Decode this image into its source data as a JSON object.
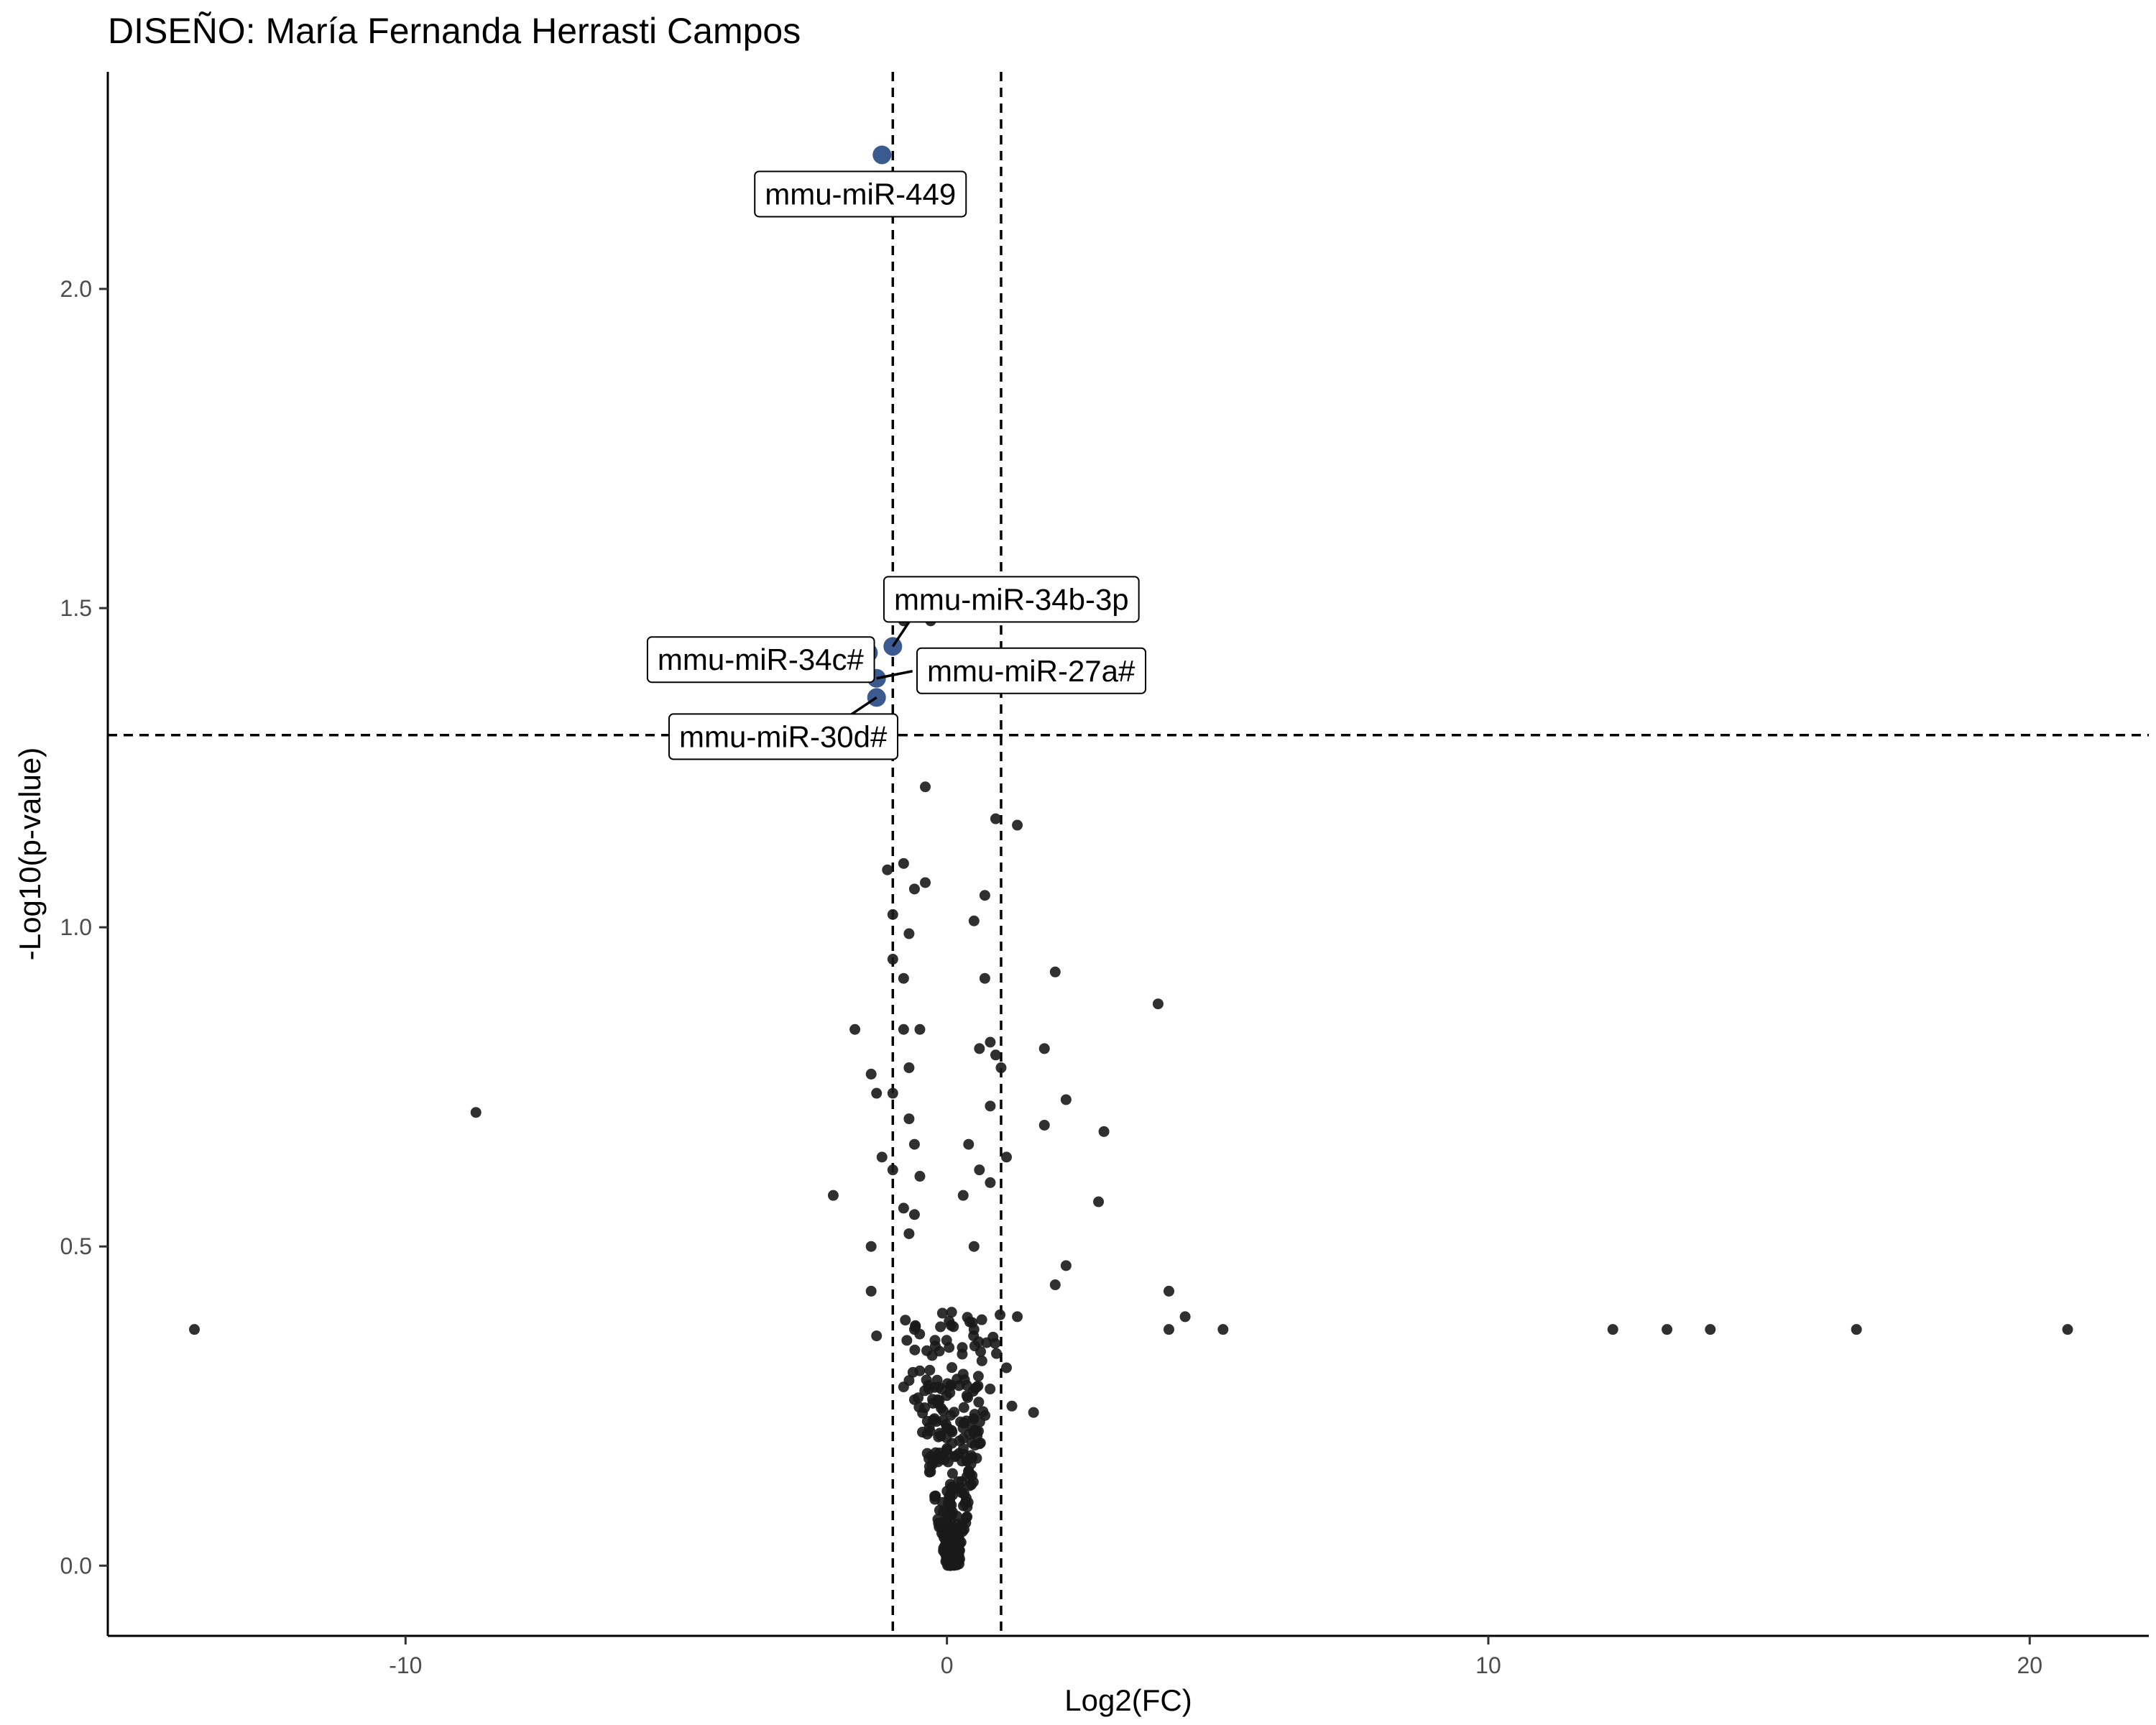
{
  "chart_data": {
    "type": "scatter",
    "title": "DISEÑO: María Fernanda Herrasti Campos",
    "xlabel": "Log2(FC)",
    "ylabel": "-Log10(p-value)",
    "xlim": [
      -15.5,
      22.2
    ],
    "ylim": [
      -0.11,
      2.34
    ],
    "x_ticks": [
      -10,
      0,
      10,
      20
    ],
    "y_ticks": [
      0.0,
      0.5,
      1.0,
      1.5,
      2.0
    ],
    "y_tick_labels": [
      "0.0",
      "0.5",
      "1.0",
      "1.5",
      "2.0"
    ],
    "grid": false,
    "thresholds": {
      "log2fc": [
        -1,
        1
      ],
      "neg_log10_p": 1.301
    },
    "colors": {
      "point": "#1a1a1a",
      "highlight": "#3b5a8f",
      "line": "#000000"
    },
    "significant_points": [
      {
        "x": -1.2,
        "y": 2.21,
        "label": "mmu-miR-449"
      },
      {
        "x": -1.0,
        "y": 1.44,
        "label": "mmu-miR-34b-3p"
      },
      {
        "x": -1.45,
        "y": 1.43,
        "label": "mmu-miR-34c#"
      },
      {
        "x": -1.3,
        "y": 1.39,
        "label": "mmu-miR-27a#"
      },
      {
        "x": -1.3,
        "y": 1.36,
        "label": "mmu-miR-30d#"
      }
    ],
    "points": [
      [
        -13.9,
        0.37
      ],
      [
        -8.7,
        0.71
      ],
      [
        12.3,
        0.37
      ],
      [
        13.3,
        0.37
      ],
      [
        14.1,
        0.37
      ],
      [
        16.8,
        0.37
      ],
      [
        20.7,
        0.37
      ],
      [
        3.9,
        0.88
      ],
      [
        4.1,
        0.37
      ],
      [
        4.1,
        0.43
      ],
      [
        4.4,
        0.39
      ],
      [
        5.1,
        0.37
      ],
      [
        2.9,
        0.68
      ],
      [
        2.8,
        0.57
      ],
      [
        2.2,
        0.73
      ],
      [
        2.2,
        0.47
      ],
      [
        2.0,
        0.93
      ],
      [
        2.0,
        0.44
      ],
      [
        1.8,
        0.81
      ],
      [
        1.8,
        0.69
      ],
      [
        1.6,
        0.24
      ],
      [
        1.3,
        1.16
      ],
      [
        1.3,
        0.39
      ],
      [
        1.2,
        0.25
      ],
      [
        1.1,
        0.64
      ],
      [
        1.1,
        0.31
      ],
      [
        1.0,
        0.78
      ],
      [
        0.9,
        1.17
      ],
      [
        0.9,
        0.8
      ],
      [
        0.8,
        0.82
      ],
      [
        0.8,
        0.6
      ],
      [
        0.8,
        0.72
      ],
      [
        0.7,
        0.92
      ],
      [
        0.7,
        1.05
      ],
      [
        0.6,
        0.81
      ],
      [
        0.6,
        0.62
      ],
      [
        0.5,
        1.01
      ],
      [
        0.5,
        0.5
      ],
      [
        0.5,
        0.37
      ],
      [
        0.4,
        0.66
      ],
      [
        0.3,
        0.58
      ],
      [
        0.3,
        0.3
      ],
      [
        -0.4,
        1.22
      ],
      [
        -0.4,
        1.07
      ],
      [
        -0.5,
        0.84
      ],
      [
        -0.5,
        0.61
      ],
      [
        -0.6,
        1.06
      ],
      [
        -0.6,
        0.66
      ],
      [
        -0.6,
        0.55
      ],
      [
        -0.6,
        0.37
      ],
      [
        -0.6,
        0.26
      ],
      [
        -0.7,
        0.99
      ],
      [
        -0.7,
        0.78
      ],
      [
        -0.7,
        0.7
      ],
      [
        -0.7,
        0.52
      ],
      [
        -0.7,
        0.29
      ],
      [
        -0.8,
        1.1
      ],
      [
        -0.8,
        0.92
      ],
      [
        -0.8,
        0.84
      ],
      [
        -0.8,
        0.56
      ],
      [
        -0.8,
        0.28
      ],
      [
        -1.0,
        1.02
      ],
      [
        -1.0,
        0.95
      ],
      [
        -1.0,
        0.74
      ],
      [
        -1.0,
        0.62
      ],
      [
        -1.1,
        1.09
      ],
      [
        -1.2,
        0.64
      ],
      [
        -1.3,
        0.74
      ],
      [
        -1.3,
        0.36
      ],
      [
        -1.4,
        0.77
      ],
      [
        -1.4,
        0.5
      ],
      [
        -1.4,
        0.43
      ],
      [
        -1.7,
        0.84
      ],
      [
        -2.1,
        0.58
      ],
      [
        -0.3,
        1.48
      ],
      [
        -0.8,
        1.48
      ]
    ]
  }
}
